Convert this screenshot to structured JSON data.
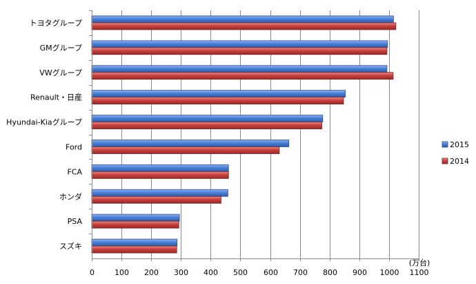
{
  "chart_data": {
    "type": "bar",
    "orientation": "horizontal",
    "categories": [
      "トヨタグループ",
      "GMグループ",
      "VWグループ",
      "Renault・日産",
      "Hyundai-Kiaグループ",
      "Ford",
      "FCA",
      "ホンダ",
      "PSA",
      "スズキ"
    ],
    "series": [
      {
        "name": "2015",
        "color": "#4a7fd6",
        "values": [
          1015,
          995,
          993,
          853,
          777,
          663,
          460,
          458,
          295,
          287
        ]
      },
      {
        "name": "2014",
        "color": "#c9403c",
        "values": [
          1023,
          993,
          1014,
          847,
          774,
          631,
          460,
          435,
          293,
          286
        ]
      }
    ],
    "xlim": [
      0,
      1100
    ],
    "xticks": [
      "0",
      "100",
      "200",
      "300",
      "400",
      "500",
      "600",
      "700",
      "800",
      "900",
      "1000",
      "1100"
    ],
    "unit_label": "(万台)",
    "grid": true,
    "legend_position": "right"
  }
}
